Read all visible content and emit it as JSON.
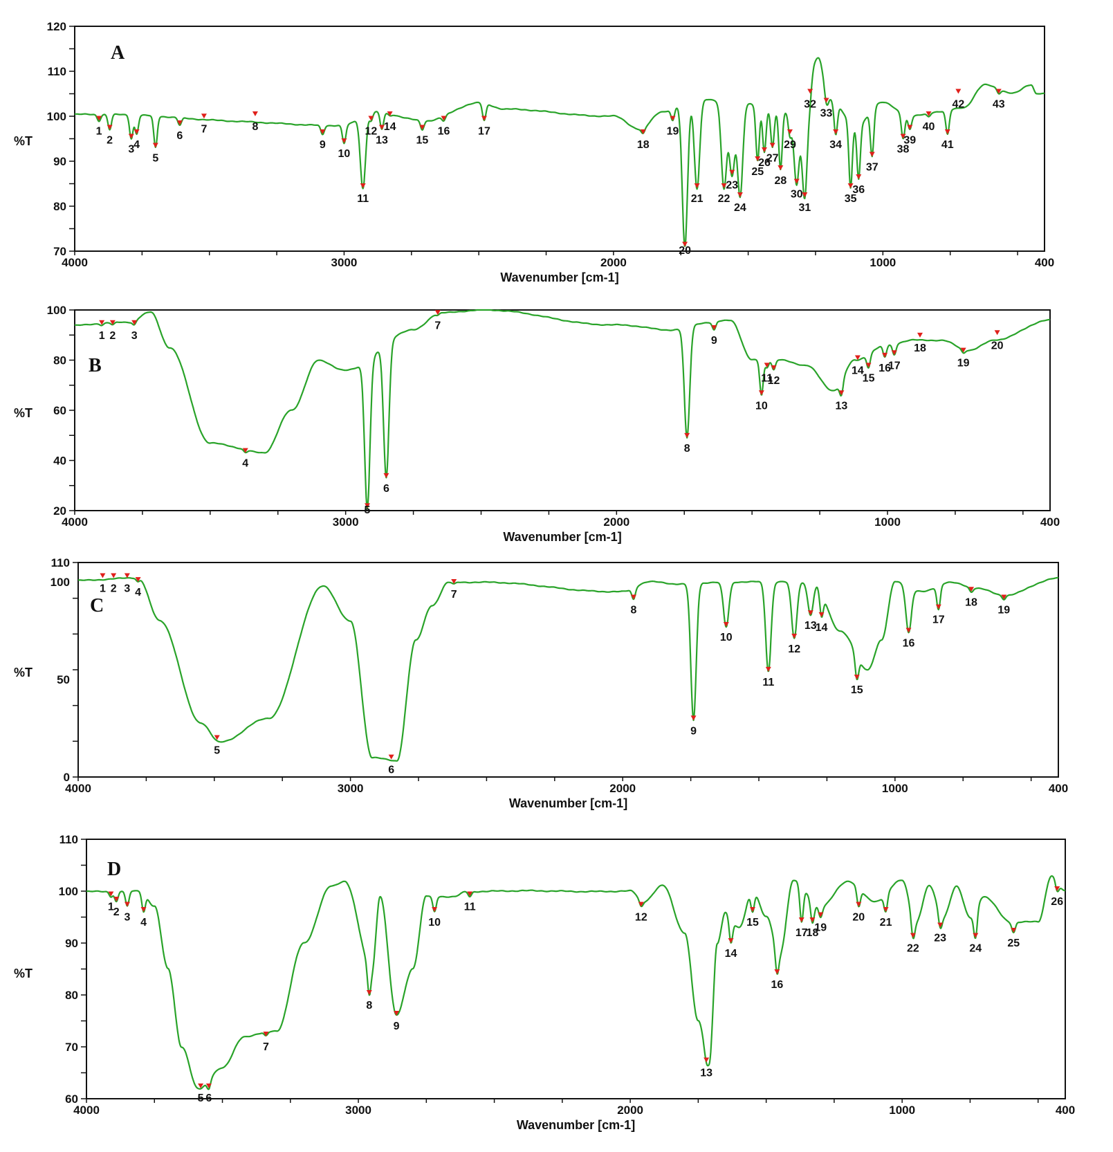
{
  "colors": {
    "line": "#29a329",
    "marker": "#e0201b",
    "frame": "#111111"
  },
  "chart_data": [
    {
      "type": "line",
      "panel": "A",
      "xlabel": "Wavenumber [cm-1]",
      "ylabel": "%T",
      "xlim": [
        4000,
        400
      ],
      "ylim": [
        70,
        120
      ],
      "x_ticks": [
        4000,
        3000,
        2000,
        1000,
        400
      ],
      "y_ticks": [
        70,
        80,
        90,
        100,
        110,
        120
      ],
      "baseline": 101,
      "base_points": [
        [
          4000,
          100.5
        ],
        [
          3000,
          98
        ],
        [
          2900,
          101
        ],
        [
          2700,
          99
        ],
        [
          2500,
          103
        ],
        [
          2400,
          101.5
        ],
        [
          2000,
          100
        ],
        [
          1900,
          97
        ],
        [
          1820,
          101
        ],
        [
          1700,
          104
        ],
        [
          1550,
          103
        ],
        [
          1350,
          101
        ],
        [
          1300,
          104
        ],
        [
          1240,
          113
        ],
        [
          1200,
          104
        ],
        [
          1100,
          98
        ],
        [
          1000,
          103
        ],
        [
          900,
          100
        ],
        [
          800,
          101
        ],
        [
          700,
          102
        ],
        [
          620,
          107
        ],
        [
          520,
          105
        ],
        [
          450,
          107
        ],
        [
          430,
          105
        ]
      ],
      "peaks": [
        {
          "id": 1,
          "x": 3910,
          "y": 99
        },
        {
          "id": 2,
          "x": 3870,
          "y": 97
        },
        {
          "id": 3,
          "x": 3790,
          "y": 95
        },
        {
          "id": 4,
          "x": 3770,
          "y": 96
        },
        {
          "id": 5,
          "x": 3700,
          "y": 93
        },
        {
          "id": 6,
          "x": 3610,
          "y": 98
        },
        {
          "id": 7,
          "x": 3520,
          "y": 99.5
        },
        {
          "id": 8,
          "x": 3330,
          "y": 100
        },
        {
          "id": 9,
          "x": 3080,
          "y": 96
        },
        {
          "id": 10,
          "x": 3000,
          "y": 94
        },
        {
          "id": 11,
          "x": 2930,
          "y": 84
        },
        {
          "id": 12,
          "x": 2900,
          "y": 99
        },
        {
          "id": 13,
          "x": 2860,
          "y": 97
        },
        {
          "id": 14,
          "x": 2830,
          "y": 100
        },
        {
          "id": 15,
          "x": 2710,
          "y": 97
        },
        {
          "id": 16,
          "x": 2630,
          "y": 99
        },
        {
          "id": 17,
          "x": 2480,
          "y": 99
        },
        {
          "id": 18,
          "x": 1890,
          "y": 96
        },
        {
          "id": 19,
          "x": 1780,
          "y": 99
        },
        {
          "id": 20,
          "x": 1735,
          "y": 71
        },
        {
          "id": 21,
          "x": 1690,
          "y": 84
        },
        {
          "id": 22,
          "x": 1590,
          "y": 84
        },
        {
          "id": 23,
          "x": 1560,
          "y": 87
        },
        {
          "id": 24,
          "x": 1530,
          "y": 82
        },
        {
          "id": 25,
          "x": 1465,
          "y": 90
        },
        {
          "id": 26,
          "x": 1440,
          "y": 92
        },
        {
          "id": 27,
          "x": 1410,
          "y": 93
        },
        {
          "id": 28,
          "x": 1380,
          "y": 88
        },
        {
          "id": 29,
          "x": 1345,
          "y": 96
        },
        {
          "id": 30,
          "x": 1320,
          "y": 85
        },
        {
          "id": 31,
          "x": 1290,
          "y": 82
        },
        {
          "id": 32,
          "x": 1270,
          "y": 105
        },
        {
          "id": 33,
          "x": 1210,
          "y": 103
        },
        {
          "id": 34,
          "x": 1175,
          "y": 96
        },
        {
          "id": 35,
          "x": 1120,
          "y": 84
        },
        {
          "id": 36,
          "x": 1090,
          "y": 86
        },
        {
          "id": 37,
          "x": 1040,
          "y": 91
        },
        {
          "id": 38,
          "x": 925,
          "y": 95
        },
        {
          "id": 39,
          "x": 900,
          "y": 97
        },
        {
          "id": 40,
          "x": 830,
          "y": 100
        },
        {
          "id": 41,
          "x": 760,
          "y": 96
        },
        {
          "id": 42,
          "x": 720,
          "y": 105
        },
        {
          "id": 43,
          "x": 570,
          "y": 105
        }
      ]
    },
    {
      "type": "line",
      "panel": "B",
      "xlabel": "Wavenumber [cm-1]",
      "ylabel": "%T",
      "xlim": [
        4000,
        400
      ],
      "ylim": [
        20,
        100
      ],
      "x_ticks": [
        4000,
        3000,
        2000,
        1000,
        400
      ],
      "y_ticks": [
        20,
        40,
        60,
        80,
        100
      ],
      "baseline": 95,
      "base_points": [
        [
          4000,
          94
        ],
        [
          3850,
          95
        ],
        [
          3800,
          95
        ],
        [
          3720,
          99
        ],
        [
          3650,
          85
        ],
        [
          3500,
          47
        ],
        [
          3300,
          43
        ],
        [
          3200,
          60
        ],
        [
          3100,
          80
        ],
        [
          3000,
          76
        ],
        [
          2750,
          92
        ],
        [
          2650,
          99
        ],
        [
          2500,
          100
        ],
        [
          2000,
          94
        ],
        [
          1800,
          92
        ],
        [
          1670,
          95
        ],
        [
          1580,
          96
        ],
        [
          1500,
          80
        ],
        [
          1400,
          80
        ],
        [
          1300,
          78
        ],
        [
          1200,
          68
        ],
        [
          1120,
          80
        ],
        [
          1000,
          86
        ],
        [
          900,
          88
        ],
        [
          800,
          88
        ],
        [
          700,
          84
        ],
        [
          600,
          88
        ],
        [
          400,
          96
        ]
      ],
      "peaks": [
        {
          "id": 1,
          "x": 3900,
          "y": 94
        },
        {
          "id": 2,
          "x": 3860,
          "y": 94
        },
        {
          "id": 3,
          "x": 3780,
          "y": 94
        },
        {
          "id": 4,
          "x": 3370,
          "y": 43
        },
        {
          "id": 5,
          "x": 2920,
          "y": 21
        },
        {
          "id": 6,
          "x": 2850,
          "y": 33
        },
        {
          "id": 7,
          "x": 2660,
          "y": 98
        },
        {
          "id": 8,
          "x": 1740,
          "y": 49
        },
        {
          "id": 9,
          "x": 1640,
          "y": 92
        },
        {
          "id": 10,
          "x": 1465,
          "y": 66
        },
        {
          "id": 11,
          "x": 1445,
          "y": 77
        },
        {
          "id": 12,
          "x": 1420,
          "y": 76
        },
        {
          "id": 13,
          "x": 1170,
          "y": 66
        },
        {
          "id": 14,
          "x": 1110,
          "y": 80
        },
        {
          "id": 15,
          "x": 1070,
          "y": 77
        },
        {
          "id": 16,
          "x": 1010,
          "y": 81
        },
        {
          "id": 17,
          "x": 975,
          "y": 82
        },
        {
          "id": 18,
          "x": 880,
          "y": 89
        },
        {
          "id": 19,
          "x": 720,
          "y": 83
        },
        {
          "id": 20,
          "x": 595,
          "y": 90
        }
      ]
    },
    {
      "type": "line",
      "panel": "C",
      "xlabel": "Wavenumber [cm-1]",
      "ylabel": "%T",
      "xlim": [
        4000,
        400
      ],
      "ylim": [
        0,
        110
      ],
      "x_ticks": [
        4000,
        3000,
        2000,
        1000,
        400
      ],
      "y_ticks": [
        0,
        50,
        100,
        110
      ],
      "baseline": 102,
      "base_points": [
        [
          4000,
          101
        ],
        [
          3780,
          102
        ],
        [
          3700,
          80
        ],
        [
          3550,
          28
        ],
        [
          3480,
          18
        ],
        [
          3300,
          30
        ],
        [
          3100,
          98
        ],
        [
          3000,
          80
        ],
        [
          2920,
          10
        ],
        [
          2830,
          8
        ],
        [
          2760,
          70
        ],
        [
          2700,
          88
        ],
        [
          2640,
          100
        ],
        [
          2550,
          100
        ],
        [
          2000,
          95
        ],
        [
          1900,
          100
        ],
        [
          1800,
          99
        ],
        [
          1650,
          100
        ],
        [
          1540,
          100
        ],
        [
          1400,
          100
        ],
        [
          1300,
          100
        ],
        [
          1200,
          75
        ],
        [
          1100,
          55
        ],
        [
          1050,
          70
        ],
        [
          1000,
          100
        ],
        [
          900,
          95
        ],
        [
          800,
          100
        ],
        [
          700,
          97
        ],
        [
          600,
          93
        ],
        [
          400,
          102
        ]
      ],
      "peaks": [
        {
          "id": 1,
          "x": 3910,
          "y": 102
        },
        {
          "id": 2,
          "x": 3870,
          "y": 102
        },
        {
          "id": 3,
          "x": 3820,
          "y": 102
        },
        {
          "id": 4,
          "x": 3780,
          "y": 100
        },
        {
          "id": 5,
          "x": 3490,
          "y": 19
        },
        {
          "id": 6,
          "x": 2850,
          "y": 9
        },
        {
          "id": 7,
          "x": 2620,
          "y": 99
        },
        {
          "id": 8,
          "x": 1960,
          "y": 91
        },
        {
          "id": 9,
          "x": 1740,
          "y": 29
        },
        {
          "id": 10,
          "x": 1620,
          "y": 77
        },
        {
          "id": 11,
          "x": 1465,
          "y": 54
        },
        {
          "id": 12,
          "x": 1370,
          "y": 71
        },
        {
          "id": 13,
          "x": 1310,
          "y": 83
        },
        {
          "id": 14,
          "x": 1270,
          "y": 82
        },
        {
          "id": 15,
          "x": 1140,
          "y": 50
        },
        {
          "id": 16,
          "x": 950,
          "y": 74
        },
        {
          "id": 17,
          "x": 840,
          "y": 86
        },
        {
          "id": 18,
          "x": 720,
          "y": 95
        },
        {
          "id": 19,
          "x": 600,
          "y": 91
        }
      ]
    },
    {
      "type": "line",
      "panel": "D",
      "xlabel": "Wavenumber [cm-1]",
      "ylabel": "%T",
      "xlim": [
        4000,
        400
      ],
      "ylim": [
        60,
        110
      ],
      "x_ticks": [
        4000,
        3000,
        2000,
        1000,
        400
      ],
      "y_ticks": [
        60,
        70,
        80,
        90,
        100,
        110
      ],
      "baseline": 100,
      "base_points": [
        [
          4000,
          100
        ],
        [
          3800,
          100
        ],
        [
          3750,
          97
        ],
        [
          3700,
          85
        ],
        [
          3650,
          70
        ],
        [
          3590,
          62
        ],
        [
          3500,
          66
        ],
        [
          3420,
          72
        ],
        [
          3300,
          73
        ],
        [
          3200,
          90
        ],
        [
          3100,
          101
        ],
        [
          3050,
          102
        ],
        [
          2950,
          85
        ],
        [
          2920,
          99
        ],
        [
          2860,
          76
        ],
        [
          2800,
          85
        ],
        [
          2750,
          99
        ],
        [
          2650,
          99
        ],
        [
          2600,
          100
        ],
        [
          2000,
          100
        ],
        [
          1950,
          98
        ],
        [
          1880,
          101
        ],
        [
          1800,
          92
        ],
        [
          1750,
          75
        ],
        [
          1710,
          67
        ],
        [
          1680,
          90
        ],
        [
          1650,
          96
        ],
        [
          1600,
          93
        ],
        [
          1550,
          100
        ],
        [
          1500,
          95
        ],
        [
          1450,
          88
        ],
        [
          1400,
          102
        ],
        [
          1300,
          97
        ],
        [
          1200,
          102
        ],
        [
          1100,
          98
        ],
        [
          1000,
          102
        ],
        [
          950,
          94
        ],
        [
          900,
          101
        ],
        [
          850,
          95
        ],
        [
          800,
          101
        ],
        [
          750,
          95
        ],
        [
          700,
          99
        ],
        [
          600,
          94
        ],
        [
          500,
          94
        ],
        [
          450,
          103
        ],
        [
          400,
          100
        ]
      ],
      "peaks": [
        {
          "id": 1,
          "x": 3910,
          "y": 99
        },
        {
          "id": 2,
          "x": 3890,
          "y": 98
        },
        {
          "id": 3,
          "x": 3850,
          "y": 97
        },
        {
          "id": 4,
          "x": 3790,
          "y": 96
        },
        {
          "id": 5,
          "x": 3580,
          "y": 62
        },
        {
          "id": 6,
          "x": 3550,
          "y": 62
        },
        {
          "id": 7,
          "x": 3340,
          "y": 72
        },
        {
          "id": 8,
          "x": 2960,
          "y": 80
        },
        {
          "id": 9,
          "x": 2860,
          "y": 76
        },
        {
          "id": 10,
          "x": 2720,
          "y": 96
        },
        {
          "id": 11,
          "x": 2590,
          "y": 99
        },
        {
          "id": 12,
          "x": 1960,
          "y": 97
        },
        {
          "id": 13,
          "x": 1720,
          "y": 67
        },
        {
          "id": 14,
          "x": 1630,
          "y": 90
        },
        {
          "id": 15,
          "x": 1550,
          "y": 96
        },
        {
          "id": 16,
          "x": 1460,
          "y": 84
        },
        {
          "id": 17,
          "x": 1370,
          "y": 94
        },
        {
          "id": 18,
          "x": 1330,
          "y": 94
        },
        {
          "id": 19,
          "x": 1300,
          "y": 95
        },
        {
          "id": 20,
          "x": 1160,
          "y": 97
        },
        {
          "id": 21,
          "x": 1060,
          "y": 96
        },
        {
          "id": 22,
          "x": 960,
          "y": 91
        },
        {
          "id": 23,
          "x": 860,
          "y": 93
        },
        {
          "id": 24,
          "x": 730,
          "y": 91
        },
        {
          "id": 25,
          "x": 590,
          "y": 92
        },
        {
          "id": 26,
          "x": 430,
          "y": 100
        }
      ]
    }
  ]
}
